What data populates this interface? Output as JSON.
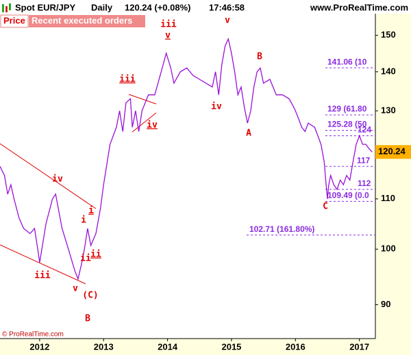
{
  "chart_data": {
    "type": "line",
    "title": "Spot EUR/JPY",
    "timeframe": "Daily",
    "change": "120.24 (+0.08%)",
    "time": "17:46:58",
    "site": "www.ProRealTime.com",
    "buttons": [
      "Price",
      "Recent executed orders"
    ],
    "copyright": "© ProRealTime.com",
    "log_scale": true,
    "last_price": 120.24,
    "x": [
      2011.38,
      2011.45,
      2011.5,
      2011.55,
      2011.6,
      2011.68,
      2011.75,
      2011.85,
      2011.92,
      2011.97,
      2012.0,
      2012.1,
      2012.2,
      2012.25,
      2012.35,
      2012.45,
      2012.55,
      2012.6,
      2012.65,
      2012.7,
      2012.75,
      2012.8,
      2012.88,
      2012.95,
      2013.0,
      2013.1,
      2013.2,
      2013.25,
      2013.3,
      2013.35,
      2013.42,
      2013.45,
      2013.5,
      2013.55,
      2013.6,
      2013.7,
      2013.8,
      2013.9,
      2013.98,
      2014.05,
      2014.1,
      2014.2,
      2014.3,
      2014.4,
      2014.5,
      2014.6,
      2014.7,
      2014.75,
      2014.8,
      2014.85,
      2014.9,
      2014.95,
      2015.0,
      2015.05,
      2015.1,
      2015.15,
      2015.2,
      2015.25,
      2015.3,
      2015.35,
      2015.4,
      2015.45,
      2015.5,
      2015.6,
      2015.65,
      2015.7,
      2015.8,
      2015.9,
      2015.97,
      2016.0,
      2016.05,
      2016.1,
      2016.15,
      2016.2,
      2016.3,
      2016.35,
      2016.4,
      2016.45,
      2016.48,
      2016.5,
      2016.52,
      2016.55,
      2016.6,
      2016.65,
      2016.7,
      2016.75,
      2016.8,
      2016.85,
      2016.9,
      2016.95,
      2017.0,
      2017.05,
      2017.1,
      2017.15,
      2017.2
    ],
    "series": [
      {
        "color": "#9a10d8",
        "values": [
          117,
          115,
          111,
          113,
          110,
          106,
          104,
          103,
          104,
          100,
          97.5,
          105,
          110,
          111,
          104,
          100,
          96,
          94.5,
          97,
          100,
          104,
          100.7,
          103,
          108,
          113,
          122,
          126,
          130,
          125,
          132,
          133,
          126,
          130,
          125,
          130,
          134,
          134,
          140,
          145,
          141,
          137,
          140,
          141,
          139,
          138,
          137,
          136,
          140,
          134,
          142,
          147,
          149,
          145,
          140,
          134,
          136,
          131,
          127,
          130,
          136,
          140,
          141,
          137,
          138,
          136,
          134,
          134,
          133,
          131,
          130,
          128,
          126,
          125,
          127,
          126,
          124,
          122,
          118,
          113,
          110,
          113,
          115,
          113,
          112,
          114,
          113,
          115,
          114,
          118,
          122,
          124,
          122,
          122,
          121,
          120.24
        ]
      }
    ],
    "levels": [
      {
        "value": 141.06,
        "label": "141.06 (10"
      },
      {
        "value": 129,
        "label": "129 (61.80"
      },
      {
        "value": 125.28,
        "label": "125.28 (50"
      },
      {
        "value": 124,
        "label": "124"
      },
      {
        "value": 117,
        "label": "117"
      },
      {
        "value": 112,
        "label": "112"
      },
      {
        "value": 109.49,
        "label": "109.49 (0.0"
      },
      {
        "value": 102.71,
        "label": "102.71 (161.80%)"
      }
    ],
    "wave_labels": [
      "iv",
      "iii",
      "v",
      "(C)",
      "B",
      "i",
      "i",
      "ii",
      "ii",
      "iii",
      "iv",
      "iii",
      "v",
      "v",
      "iv",
      "B",
      "A",
      "C"
    ],
    "xlim": [
      2011.38,
      2017.25
    ],
    "xticks": [
      2012,
      2013,
      2014,
      2015,
      2016,
      2017
    ],
    "ylim": [
      84.4,
      156.3
    ],
    "yticks": [
      90,
      100,
      110,
      130,
      140,
      150
    ]
  }
}
